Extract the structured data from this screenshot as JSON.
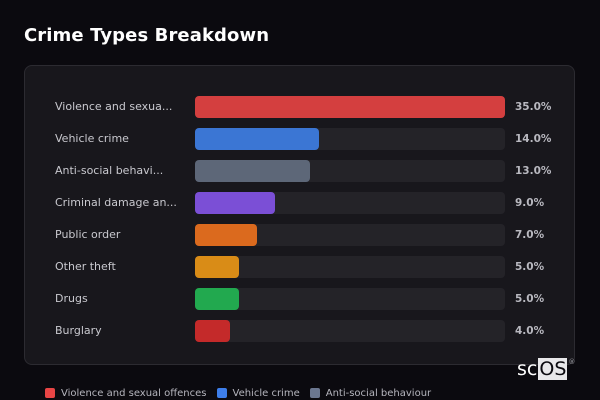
{
  "title": "Crime Types Breakdown",
  "rows": [
    {
      "label": "Violence and sexua...",
      "value": "35.0%",
      "pct": 35.0,
      "color": "#d43f3f"
    },
    {
      "label": "Vehicle crime",
      "value": "14.0%",
      "pct": 14.0,
      "color": "#3b76d4"
    },
    {
      "label": "Anti-social behavi...",
      "value": "13.0%",
      "pct": 13.0,
      "color": "#5d6778"
    },
    {
      "label": "Criminal damage an...",
      "value": "9.0%",
      "pct": 9.0,
      "color": "#7b4fd6"
    },
    {
      "label": "Public order",
      "value": "7.0%",
      "pct": 7.0,
      "color": "#db6a1e"
    },
    {
      "label": "Other theft",
      "value": "5.0%",
      "pct": 5.0,
      "color": "#d98c17"
    },
    {
      "label": "Drugs",
      "value": "5.0%",
      "pct": 5.0,
      "color": "#22a94f"
    },
    {
      "label": "Burglary",
      "value": "4.0%",
      "pct": 4.0,
      "color": "#c42a2a"
    }
  ],
  "legend": [
    {
      "label": "Violence and sexual offences",
      "color": "#e84545"
    },
    {
      "label": "Vehicle crime",
      "color": "#3d7eea"
    },
    {
      "label": "Anti-social behaviour",
      "color": "#6b7790"
    }
  ],
  "logo": {
    "prefix": "sc",
    "boxed": "OS",
    "mark": "®"
  },
  "chart_data": {
    "type": "bar",
    "orientation": "horizontal",
    "title": "Crime Types Breakdown",
    "categories": [
      "Violence and sexual offences",
      "Vehicle crime",
      "Anti-social behaviour",
      "Criminal damage and arson",
      "Public order",
      "Other theft",
      "Drugs",
      "Burglary"
    ],
    "category_tick_labels": [
      "Violence and sexua...",
      "Vehicle crime",
      "Anti-social behavi...",
      "Criminal damage an...",
      "Public order",
      "Other theft",
      "Drugs",
      "Burglary"
    ],
    "values": [
      35.0,
      14.0,
      13.0,
      9.0,
      7.0,
      5.0,
      5.0,
      4.0
    ],
    "value_labels": [
      "35.0%",
      "14.0%",
      "13.0%",
      "9.0%",
      "7.0%",
      "5.0%",
      "5.0%",
      "4.0%"
    ],
    "unit": "%",
    "xlabel": "",
    "ylabel": "",
    "xlim": [
      0,
      35
    ],
    "grid": false,
    "legend": {
      "position": "bottom",
      "entries": [
        "Violence and sexual offences",
        "Vehicle crime",
        "Anti-social behaviour"
      ]
    }
  }
}
